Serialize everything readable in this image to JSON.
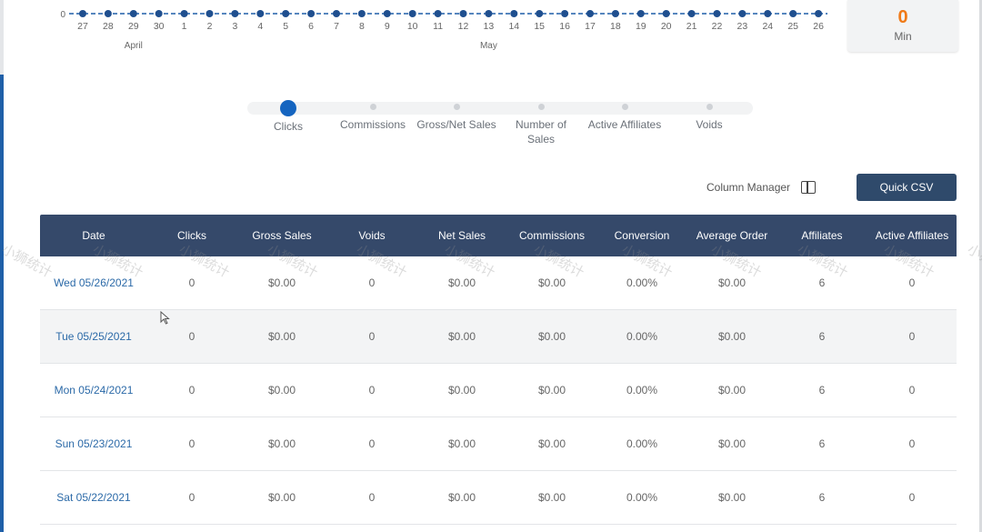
{
  "chart_data": {
    "type": "line",
    "x": [
      "27",
      "28",
      "29",
      "30",
      "1",
      "2",
      "3",
      "4",
      "5",
      "6",
      "7",
      "8",
      "9",
      "10",
      "11",
      "12",
      "13",
      "14",
      "15",
      "16",
      "17",
      "18",
      "19",
      "20",
      "21",
      "22",
      "23",
      "24",
      "25",
      "26"
    ],
    "y": [
      0,
      0,
      0,
      0,
      0,
      0,
      0,
      0,
      0,
      0,
      0,
      0,
      0,
      0,
      0,
      0,
      0,
      0,
      0,
      0,
      0,
      0,
      0,
      0,
      0,
      0,
      0,
      0,
      0,
      0
    ],
    "y_tick_labels": [
      "0"
    ],
    "month_labels": [
      {
        "label": "April",
        "at_index": 2
      },
      {
        "label": "May",
        "at_index": 16
      }
    ],
    "color": "#1f5fa8",
    "grid": false
  },
  "stat_card": {
    "value": "0",
    "label": "Min",
    "value_color": "#f07a18"
  },
  "metrics": [
    {
      "label": "Clicks",
      "active": true
    },
    {
      "label": "Commissions",
      "active": false
    },
    {
      "label": "Gross/Net Sales",
      "active": false
    },
    {
      "label": "Number of Sales",
      "active": false
    },
    {
      "label": "Active Affiliates",
      "active": false
    },
    {
      "label": "Voids",
      "active": false
    }
  ],
  "toolbar": {
    "column_manager_label": "Column Manager",
    "csv_label": "Quick CSV"
  },
  "table": {
    "columns": [
      "Date",
      "Clicks",
      "Gross Sales",
      "Voids",
      "Net Sales",
      "Commissions",
      "Conversion",
      "Average Order",
      "Affiliates",
      "Active Affiliates"
    ],
    "rows": [
      [
        "Wed 05/26/2021",
        "0",
        "$0.00",
        "0",
        "$0.00",
        "$0.00",
        "0.00%",
        "$0.00",
        "6",
        "0"
      ],
      [
        "Tue 05/25/2021",
        "0",
        "$0.00",
        "0",
        "$0.00",
        "$0.00",
        "0.00%",
        "$0.00",
        "6",
        "0"
      ],
      [
        "Mon 05/24/2021",
        "0",
        "$0.00",
        "0",
        "$0.00",
        "$0.00",
        "0.00%",
        "$0.00",
        "6",
        "0"
      ],
      [
        "Sun 05/23/2021",
        "0",
        "$0.00",
        "0",
        "$0.00",
        "$0.00",
        "0.00%",
        "$0.00",
        "6",
        "0"
      ],
      [
        "Sat 05/22/2021",
        "0",
        "$0.00",
        "0",
        "$0.00",
        "$0.00",
        "0.00%",
        "$0.00",
        "6",
        "0"
      ]
    ]
  },
  "watermark": {
    "text": "小狮统计"
  },
  "colors": {
    "header_bg": "#35496a",
    "accent": "#1565c0",
    "link": "#2c6aa8",
    "button_bg": "#2f4a6b"
  }
}
